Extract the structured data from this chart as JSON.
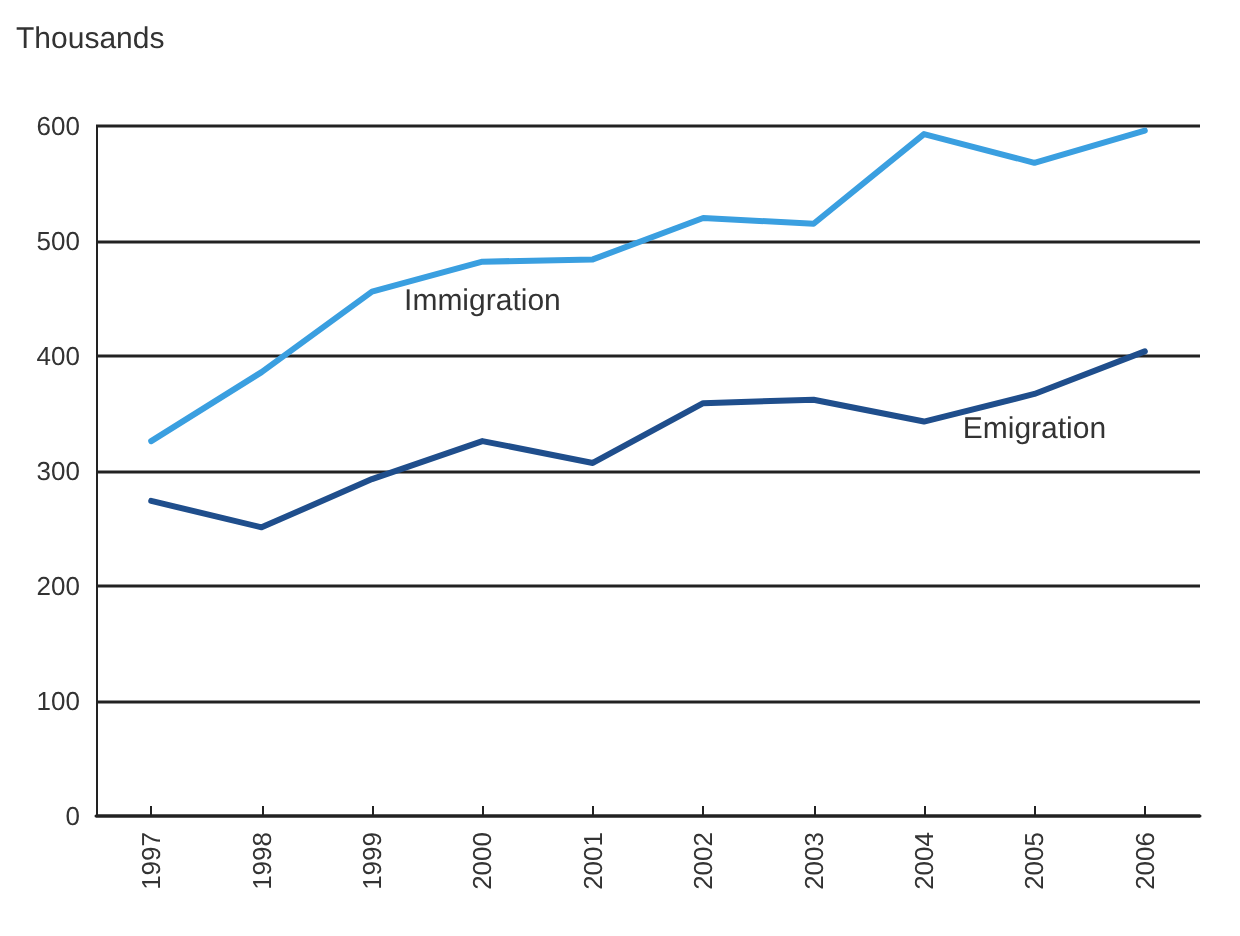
{
  "chart_data": {
    "type": "line",
    "ylabel": "Thousands",
    "categories": [
      "1997",
      "1998",
      "1999",
      "2000",
      "2001",
      "2002",
      "2003",
      "2004",
      "2005",
      "2006"
    ],
    "series": [
      {
        "name": "Immigration",
        "color": "#3a9fe0",
        "values": [
          326,
          386,
          456,
          482,
          484,
          520,
          515,
          593,
          568,
          596
        ]
      },
      {
        "name": "Emigration",
        "color": "#1f4e8c",
        "values": [
          274,
          251,
          293,
          326,
          307,
          359,
          362,
          343,
          367,
          404
        ]
      }
    ],
    "ylim": [
      0,
      600
    ],
    "yticks": [
      0,
      100,
      200,
      300,
      400,
      500,
      600
    ],
    "grid": "y",
    "legend": false,
    "marker": "none",
    "line_style": "solid"
  }
}
